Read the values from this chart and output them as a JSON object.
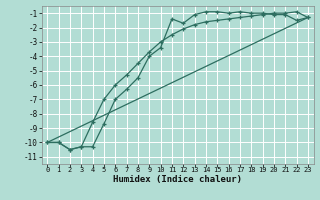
{
  "xlabel": "Humidex (Indice chaleur)",
  "bg_color": "#b2ddd4",
  "grid_color": "#ffffff",
  "line_color": "#2d6e60",
  "xlim": [
    -0.5,
    23.5
  ],
  "ylim": [
    -11.5,
    -0.5
  ],
  "yticks": [
    -1,
    -2,
    -3,
    -4,
    -5,
    -6,
    -7,
    -8,
    -9,
    -10,
    -11
  ],
  "xticks": [
    0,
    1,
    2,
    3,
    4,
    5,
    6,
    7,
    8,
    9,
    10,
    11,
    12,
    13,
    14,
    15,
    16,
    17,
    18,
    19,
    20,
    21,
    22,
    23
  ],
  "line1_x": [
    0,
    1,
    2,
    3,
    4,
    5,
    6,
    7,
    8,
    9,
    10,
    11,
    12,
    13,
    14,
    15,
    16,
    17,
    18,
    19,
    20,
    21,
    22,
    23
  ],
  "line1_y": [
    -10.0,
    -10.0,
    -10.5,
    -10.3,
    -10.3,
    -8.7,
    -7.0,
    -6.3,
    -5.5,
    -4.0,
    -3.4,
    -1.4,
    -1.7,
    -1.1,
    -0.9,
    -0.9,
    -1.0,
    -0.9,
    -1.0,
    -1.0,
    -1.1,
    -1.1,
    -1.5,
    -1.3
  ],
  "line2_x": [
    0,
    1,
    2,
    3,
    4,
    5,
    6,
    7,
    8,
    9,
    10,
    11,
    12,
    13,
    14,
    15,
    16,
    17,
    18,
    19,
    20,
    21,
    22,
    23
  ],
  "line2_y": [
    -10.0,
    -10.0,
    -10.5,
    -10.3,
    -8.6,
    -7.0,
    -6.0,
    -5.3,
    -4.5,
    -3.7,
    -3.0,
    -2.5,
    -2.1,
    -1.8,
    -1.6,
    -1.5,
    -1.4,
    -1.3,
    -1.2,
    -1.1,
    -1.0,
    -1.0,
    -0.9,
    -1.3
  ],
  "line3_x": [
    0,
    23
  ],
  "line3_y": [
    -10.0,
    -1.3
  ]
}
